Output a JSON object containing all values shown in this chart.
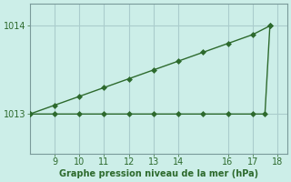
{
  "xlabel": "Graphe pression niveau de la mer (hPa)",
  "background_color": "#cceee8",
  "line_color": "#2d6a2d",
  "grid_color": "#aacccc",
  "x_diag": [
    8,
    9,
    10,
    11,
    12,
    13,
    14,
    15,
    16,
    17,
    17.7
  ],
  "y_diag": [
    1013.0,
    1013.1,
    1013.2,
    1013.3,
    1013.4,
    1013.5,
    1013.6,
    1013.7,
    1013.8,
    1013.9,
    1014.0
  ],
  "x_flat": [
    8,
    9,
    10,
    11,
    12,
    13,
    14,
    15,
    16,
    17,
    17.5,
    17.7
  ],
  "y_flat": [
    1013.0,
    1013.0,
    1013.0,
    1013.0,
    1013.0,
    1013.0,
    1013.0,
    1013.0,
    1013.0,
    1013.0,
    1013.0,
    1014.0
  ],
  "xlim": [
    8.0,
    18.4
  ],
  "ylim": [
    1012.55,
    1014.25
  ],
  "xticks": [
    9,
    10,
    11,
    12,
    13,
    14,
    16,
    17,
    18
  ],
  "yticks": [
    1013,
    1014
  ],
  "markersize": 3,
  "linewidth": 1.0,
  "tick_labelsize": 7,
  "xlabel_fontsize": 7,
  "spine_color": "#7a9a9a"
}
